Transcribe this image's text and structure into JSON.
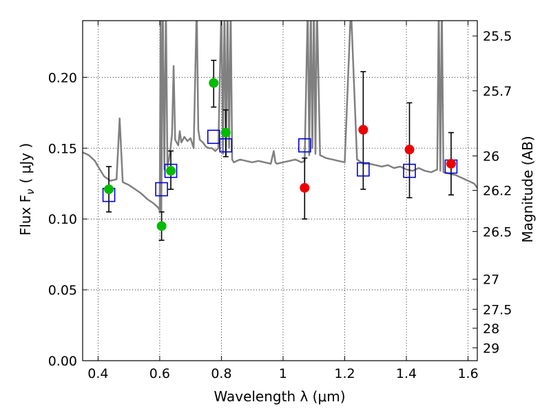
{
  "chart_data": {
    "type": "scatter",
    "title": "",
    "xlabel": "Wavelength  λ (μm)",
    "ylabel": "Flux  F",
    "ylabel_sub": "ν",
    "ylabel_unit": "( μJy )",
    "y2label": "Magnitude (AB)",
    "xlim": [
      0.35,
      1.63
    ],
    "ylim": [
      0.0,
      0.24
    ],
    "xticks": [
      0.4,
      0.6,
      0.8,
      1.0,
      1.2,
      1.4,
      1.6
    ],
    "xtick_labels": [
      "0.4",
      "0.6",
      "0.8",
      "1",
      "1.2",
      "1.4",
      "1.6"
    ],
    "yticks": [
      0.0,
      0.05,
      0.1,
      0.15,
      0.2
    ],
    "ytick_labels": [
      "0.00",
      "0.05",
      "0.10",
      "0.15",
      "0.20"
    ],
    "y2ticks": [
      {
        "flux": 0.2292,
        "label": "25.5"
      },
      {
        "flux": 0.1905,
        "label": "25.7"
      },
      {
        "flux": 0.1445,
        "label": "26"
      },
      {
        "flux": 0.1202,
        "label": "26.2"
      },
      {
        "flux": 0.0912,
        "label": "26.5"
      },
      {
        "flux": 0.0575,
        "label": "27"
      },
      {
        "flux": 0.0363,
        "label": "27.5"
      },
      {
        "flux": 0.0229,
        "label": "28"
      },
      {
        "flux": 0.0091,
        "label": "29"
      }
    ],
    "grid": true,
    "colors": {
      "model": "#808080",
      "green": "#00bb00",
      "red": "#ee0000",
      "box": "#0000dd",
      "errorbar": "#000000"
    },
    "series": [
      {
        "marker": "circle",
        "color": "#00bb00",
        "points": [
          {
            "x": 0.435,
            "y": 0.121,
            "yerr_low": 0.105,
            "yerr_high": 0.137
          },
          {
            "x": 0.606,
            "y": 0.095,
            "yerr_low": 0.085,
            "yerr_high": 0.105
          },
          {
            "x": 0.636,
            "y": 0.134,
            "yerr_low": 0.121,
            "yerr_high": 0.148
          },
          {
            "x": 0.775,
            "y": 0.196,
            "yerr_low": 0.179,
            "yerr_high": 0.212
          },
          {
            "x": 0.814,
            "y": 0.161,
            "yerr_low": 0.144,
            "yerr_high": 0.177
          }
        ]
      },
      {
        "marker": "circle",
        "color": "#ee0000",
        "points": [
          {
            "x": 1.07,
            "y": 0.122,
            "yerr_low": 0.1,
            "yerr_high": 0.143
          },
          {
            "x": 1.26,
            "y": 0.163,
            "yerr_low": 0.121,
            "yerr_high": 0.204
          },
          {
            "x": 1.41,
            "y": 0.149,
            "yerr_low": 0.115,
            "yerr_high": 0.182
          },
          {
            "x": 1.545,
            "y": 0.139,
            "yerr_low": 0.117,
            "yerr_high": 0.161
          }
        ]
      },
      {
        "marker": "open-square",
        "color": "#0000dd",
        "points": [
          {
            "x": 0.435,
            "y": 0.117
          },
          {
            "x": 0.606,
            "y": 0.121
          },
          {
            "x": 0.636,
            "y": 0.134
          },
          {
            "x": 0.775,
            "y": 0.158
          },
          {
            "x": 0.814,
            "y": 0.152
          },
          {
            "x": 1.07,
            "y": 0.152
          },
          {
            "x": 1.26,
            "y": 0.135
          },
          {
            "x": 1.41,
            "y": 0.134
          },
          {
            "x": 1.545,
            "y": 0.137
          }
        ]
      }
    ],
    "model_spectrum": {
      "color": "#808080",
      "x": [
        0.35,
        0.37,
        0.39,
        0.4,
        0.42,
        0.44,
        0.46,
        0.47,
        0.48,
        0.5,
        0.52,
        0.54,
        0.56,
        0.58,
        0.595,
        0.6,
        0.603,
        0.605,
        0.61,
        0.615,
        0.62,
        0.625,
        0.63,
        0.635,
        0.64,
        0.645,
        0.65,
        0.66,
        0.665,
        0.67,
        0.68,
        0.69,
        0.7,
        0.71,
        0.72,
        0.725,
        0.73,
        0.74,
        0.75,
        0.76,
        0.77,
        0.78,
        0.79,
        0.8,
        0.805,
        0.81,
        0.815,
        0.82,
        0.825,
        0.83,
        0.835,
        0.84,
        0.85,
        0.86,
        0.88,
        0.9,
        0.92,
        0.94,
        0.96,
        0.97,
        0.975,
        0.98,
        1.0,
        1.02,
        1.04,
        1.05,
        1.06,
        1.07,
        1.08,
        1.085,
        1.09,
        1.095,
        1.1,
        1.105,
        1.11,
        1.12,
        1.14,
        1.16,
        1.18,
        1.2,
        1.22,
        1.24,
        1.26,
        1.28,
        1.3,
        1.32,
        1.34,
        1.36,
        1.38,
        1.4,
        1.42,
        1.44,
        1.46,
        1.48,
        1.5,
        1.505,
        1.51,
        1.515,
        1.52,
        1.54,
        1.56,
        1.58,
        1.6,
        1.62,
        1.63
      ],
      "y": [
        0.147,
        0.145,
        0.141,
        0.137,
        0.13,
        0.127,
        0.128,
        0.171,
        0.126,
        0.124,
        0.121,
        0.118,
        0.114,
        0.111,
        0.108,
        0.106,
        0.25,
        0.105,
        0.25,
        0.135,
        0.25,
        0.137,
        0.142,
        0.15,
        0.16,
        0.208,
        0.156,
        0.152,
        0.162,
        0.154,
        0.158,
        0.155,
        0.157,
        0.15,
        0.25,
        0.163,
        0.156,
        0.154,
        0.151,
        0.15,
        0.15,
        0.148,
        0.15,
        0.25,
        0.146,
        0.25,
        0.145,
        0.25,
        0.15,
        0.25,
        0.142,
        0.14,
        0.141,
        0.142,
        0.141,
        0.14,
        0.141,
        0.14,
        0.139,
        0.148,
        0.14,
        0.139,
        0.14,
        0.141,
        0.142,
        0.141,
        0.14,
        0.141,
        0.25,
        0.145,
        0.25,
        0.15,
        0.25,
        0.146,
        0.25,
        0.145,
        0.143,
        0.142,
        0.141,
        0.14,
        0.25,
        0.142,
        0.139,
        0.139,
        0.138,
        0.137,
        0.138,
        0.136,
        0.137,
        0.135,
        0.134,
        0.136,
        0.134,
        0.133,
        0.135,
        0.25,
        0.134,
        0.25,
        0.133,
        0.132,
        0.131,
        0.129,
        0.127,
        0.125,
        0.122
      ]
    }
  }
}
